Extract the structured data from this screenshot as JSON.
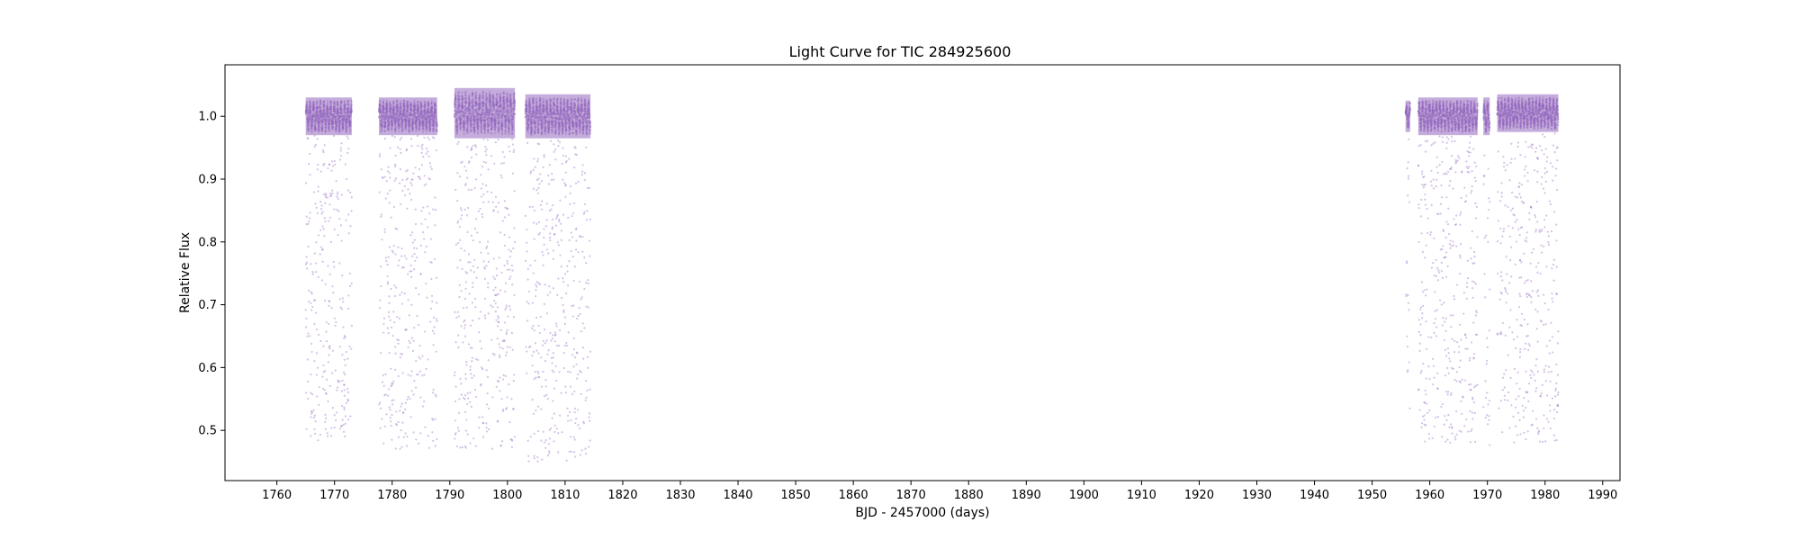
{
  "chart_data": {
    "type": "scatter",
    "title": "Light Curve for TIC 284925600",
    "xlabel": "BJD - 2457000 (days)",
    "ylabel": "Relative Flux",
    "xlim": [
      1751,
      1993
    ],
    "ylim": [
      0.42,
      1.082
    ],
    "xticks": [
      1760,
      1770,
      1780,
      1790,
      1800,
      1810,
      1820,
      1830,
      1840,
      1850,
      1860,
      1870,
      1880,
      1890,
      1900,
      1910,
      1920,
      1930,
      1940,
      1950,
      1960,
      1970,
      1980,
      1990
    ],
    "yticks": [
      0.5,
      0.6,
      0.7,
      0.8,
      0.9,
      1.0
    ],
    "ytick_labels": [
      "0.5",
      "0.6",
      "0.7",
      "0.8",
      "0.9",
      "1.0"
    ],
    "grid": false,
    "legend": "none",
    "marker_color": "#9467bd",
    "segments": [
      {
        "x_start": 1765.0,
        "x_end": 1773.0,
        "baseline": 1.0,
        "amplitude": 0.03,
        "dip_floor": 0.48
      },
      {
        "x_start": 1777.7,
        "x_end": 1787.8,
        "baseline": 1.0,
        "amplitude": 0.03,
        "dip_floor": 0.47
      },
      {
        "x_start": 1790.8,
        "x_end": 1801.3,
        "baseline": 1.005,
        "amplitude": 0.04,
        "dip_floor": 0.47
      },
      {
        "x_start": 1803.1,
        "x_end": 1814.4,
        "baseline": 1.0,
        "amplitude": 0.035,
        "dip_floor": 0.45
      },
      {
        "x_start": 1955.8,
        "x_end": 1956.6,
        "baseline": 1.0,
        "amplitude": 0.025,
        "dip_floor": 0.5
      },
      {
        "x_start": 1958.0,
        "x_end": 1968.3,
        "baseline": 1.0,
        "amplitude": 0.03,
        "dip_floor": 0.48
      },
      {
        "x_start": 1969.3,
        "x_end": 1970.4,
        "baseline": 1.0,
        "amplitude": 0.03,
        "dip_floor": 0.47
      },
      {
        "x_start": 1971.7,
        "x_end": 1982.3,
        "baseline": 1.005,
        "amplitude": 0.03,
        "dip_floor": 0.48
      }
    ]
  }
}
